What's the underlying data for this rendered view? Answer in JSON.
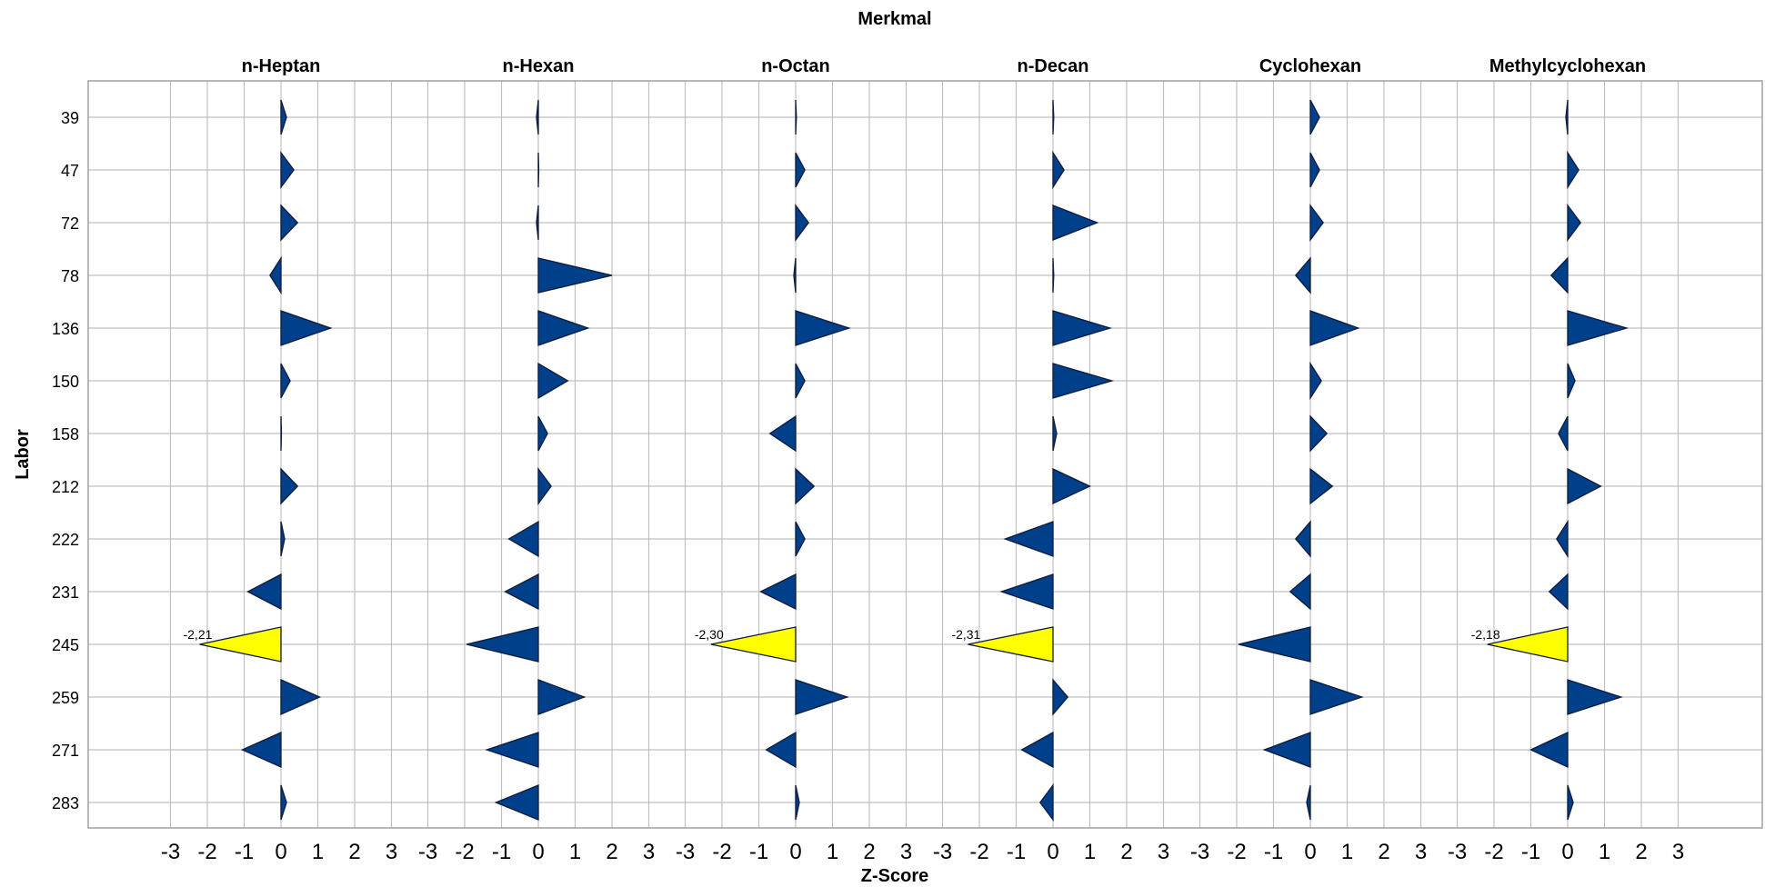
{
  "chart_data": {
    "type": "bar",
    "title": "Merkmal",
    "xlabel": "Z-Score",
    "ylabel": "Labor",
    "xlim": [
      -3,
      3
    ],
    "x_ticks": [
      "-3",
      "-2",
      "-1",
      "0",
      "1",
      "2",
      "3"
    ],
    "grid": true,
    "mark": "triangle",
    "colors": {
      "normal": "#003f8a",
      "highlight": "#ffff00",
      "outline": "#0d1b3d",
      "grid": "#c0c0c0"
    },
    "categories": [
      "39",
      "47",
      "72",
      "78",
      "136",
      "150",
      "158",
      "212",
      "222",
      "231",
      "245",
      "259",
      "271",
      "283"
    ],
    "series": [
      {
        "name": "n-Heptan",
        "values": [
          0.15,
          0.35,
          0.45,
          -0.3,
          1.35,
          0.25,
          0.0,
          0.45,
          0.1,
          -0.9,
          -2.21,
          1.05,
          -1.05,
          0.15
        ],
        "highlight_index": 10,
        "highlight_label": "-2,21"
      },
      {
        "name": "n-Hexan",
        "values": [
          -0.05,
          0.0,
          -0.05,
          2.0,
          1.35,
          0.8,
          0.25,
          0.35,
          -0.8,
          -0.9,
          -1.95,
          1.25,
          -1.4,
          -1.15
        ],
        "highlight_index": null,
        "highlight_label": ""
      },
      {
        "name": "n-Octan",
        "values": [
          0.02,
          0.25,
          0.35,
          -0.05,
          1.45,
          0.25,
          -0.7,
          0.5,
          0.25,
          -0.95,
          -2.3,
          1.4,
          -0.8,
          0.1
        ],
        "highlight_index": 10,
        "highlight_label": "-2,30"
      },
      {
        "name": "n-Decan",
        "values": [
          0.02,
          0.3,
          1.2,
          0.02,
          1.55,
          1.6,
          0.1,
          1.0,
          -1.3,
          -1.4,
          -2.31,
          0.4,
          -0.85,
          -0.35
        ],
        "highlight_index": 10,
        "highlight_label": "-2,31"
      },
      {
        "name": "Cyclohexan",
        "values": [
          0.25,
          0.25,
          0.35,
          -0.4,
          1.3,
          0.3,
          0.45,
          0.6,
          -0.4,
          -0.55,
          -1.95,
          1.4,
          -1.25,
          -0.1
        ],
        "highlight_index": null,
        "highlight_label": ""
      },
      {
        "name": "Methylcyclohexan",
        "values": [
          -0.05,
          0.3,
          0.35,
          -0.45,
          1.6,
          0.2,
          -0.25,
          0.9,
          -0.3,
          -0.5,
          -2.18,
          1.45,
          -1.0,
          0.15
        ],
        "highlight_index": 10,
        "highlight_label": "-2,18"
      }
    ]
  }
}
